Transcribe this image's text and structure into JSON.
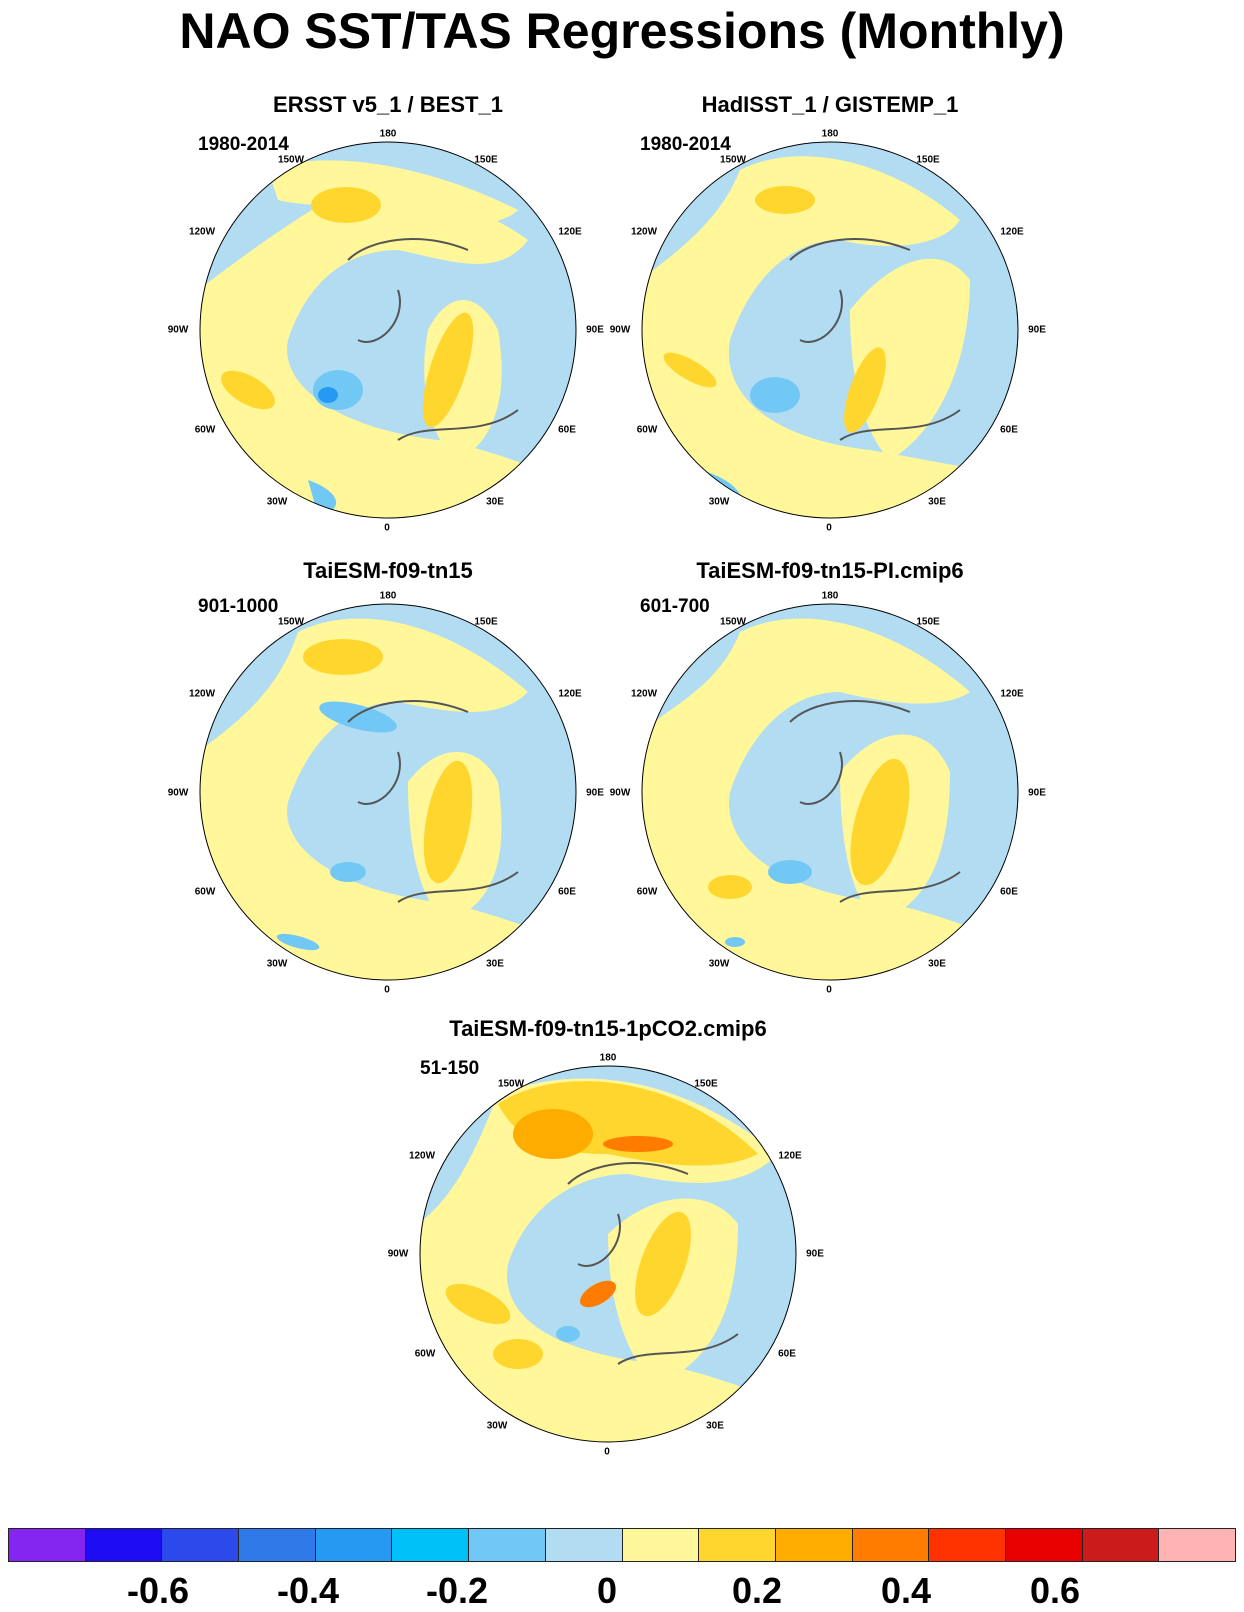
{
  "title": "NAO SST/TAS Regressions (Monthly)",
  "panels": [
    {
      "title": "ERSST v5_1 / BEST_1",
      "period": "1980-2014"
    },
    {
      "title": "HadISST_1 / GISTEMP_1",
      "period": "1980-2014"
    },
    {
      "title": "TaiESM-f09-tn15",
      "period": "901-1000"
    },
    {
      "title": "TaiESM-f09-tn15-PI.cmip6",
      "period": "601-700"
    },
    {
      "title": "TaiESM-f09-tn15-1pCO2.cmip6",
      "period": "51-150"
    }
  ],
  "lon_labels": {
    "lon180": "180",
    "lon150w": "150W",
    "lon150e": "150E",
    "lon120w": "120W",
    "lon120e": "120E",
    "lon90w": "90W",
    "lon90e": "90E",
    "lon60w": "60W",
    "lon60e": "60E",
    "lon30w": "30W",
    "lon30e": "30E",
    "lon0": "0"
  },
  "colorbar": {
    "colors": [
      "#8426f0",
      "#1e0cf5",
      "#2c49eb",
      "#3079e8",
      "#2699f2",
      "#00c0f8",
      "#72c8f4",
      "#b2dcf2",
      "#fff79a",
      "#ffd62e",
      "#ffac00",
      "#ff7c00",
      "#ff3300",
      "#e80000",
      "#cc1b1b",
      "#ffb3b3"
    ],
    "labels": [
      "-0.6",
      "-0.4",
      "-0.2",
      "0",
      "0.2",
      "0.4",
      "0.6"
    ]
  }
}
